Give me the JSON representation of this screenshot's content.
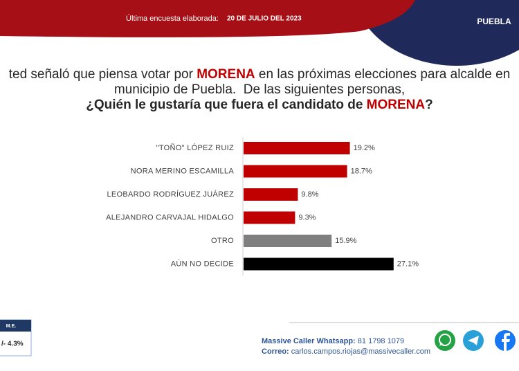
{
  "header": {
    "survey_label": "Última encuesta elaborada:",
    "survey_date": "20 DE JULIO DEL 2023",
    "region": "PUEBLA"
  },
  "question": {
    "line1": [
      "ted señaló que piensa votar por ",
      "MORENA",
      " en las próximas elecciones para alcalde en"
    ],
    "line2": "municipio de Puebla.  De las siguientes personas,",
    "line3": [
      "¿Quién le gustaría que fuera el candidato de ",
      "MORENA",
      "?"
    ]
  },
  "chart_data": {
    "type": "hbar",
    "categories": [
      "\"TOÑO\" LÓPEZ RUIZ",
      "NORA MERINO ESCAMILLA",
      "LEOBARDO RODRÍGUEZ JUÁREZ",
      "ALEJANDRO CARVAJAL HIDALGO",
      "OTRO",
      "AÚN NO DECIDE"
    ],
    "values": [
      19.2,
      18.7,
      9.8,
      9.3,
      15.9,
      27.1
    ],
    "value_labels": [
      "19.2%",
      "18.7%",
      "9.8%",
      "9.3%",
      "15.9%",
      "27.1%"
    ],
    "colors": [
      "#c00000",
      "#c00000",
      "#c00000",
      "#c00000",
      "#7f7f7f",
      "#000000"
    ]
  },
  "margin_of_error": {
    "label": "M.E.",
    "value": "/- 4.3%"
  },
  "footer": {
    "whatsapp_label": "Massive Caller Whatsapp:",
    "whatsapp": "81 1798 1079",
    "email_label": "Correo:",
    "email": "carlos.campos.riojas@massivecaller.com"
  }
}
